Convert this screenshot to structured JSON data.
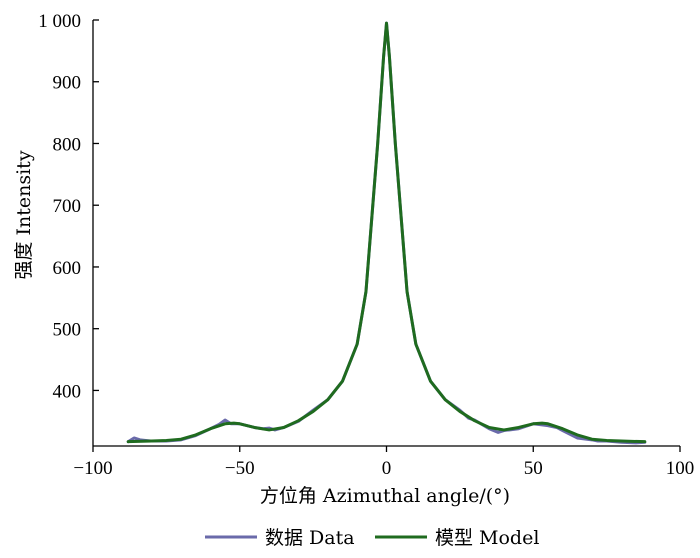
{
  "chart_data": {
    "type": "line",
    "title": "",
    "xlabel": "方位角 Azimuthal angle/(°)",
    "ylabel": "强度 Intensity",
    "xlim": [
      -100,
      100
    ],
    "ylim": [
      310,
      1000
    ],
    "x_ticks": [
      -100,
      -50,
      0,
      50,
      100
    ],
    "x_tick_labels": [
      "−100",
      "−50",
      "0",
      "50",
      "100"
    ],
    "y_ticks": [
      400,
      500,
      600,
      700,
      800,
      900,
      1000
    ],
    "y_tick_labels": [
      "400",
      "500",
      "600",
      "700",
      "800",
      "900",
      "1 000"
    ],
    "grid": false,
    "legend_position": "bottom",
    "series": [
      {
        "name": "数据 Data",
        "color": "#6a6aaa",
        "x": [
          -88,
          -86,
          -84,
          -80,
          -75,
          -70,
          -65,
          -60,
          -57,
          -55,
          -53,
          -50,
          -45,
          -42,
          -40,
          -38,
          -35,
          -30,
          -25,
          -20,
          -15,
          -10,
          -7,
          -5,
          -3,
          -1,
          0,
          1,
          3,
          5,
          7,
          10,
          15,
          20,
          25,
          28,
          30,
          35,
          38,
          40,
          45,
          50,
          55,
          58,
          60,
          65,
          70,
          72,
          75,
          80,
          85,
          88
        ],
        "y": [
          317,
          323,
          320,
          318,
          318,
          320,
          327,
          338,
          345,
          352,
          346,
          346,
          340,
          338,
          339,
          336,
          340,
          350,
          368,
          385,
          415,
          475,
          560,
          680,
          800,
          940,
          995,
          940,
          800,
          680,
          560,
          475,
          415,
          385,
          368,
          355,
          352,
          338,
          332,
          335,
          338,
          346,
          343,
          340,
          335,
          323,
          320,
          318,
          318,
          316,
          315,
          316
        ]
      },
      {
        "name": "模型 Model",
        "color": "#1f6b1f",
        "x": [
          -88,
          -80,
          -75,
          -70,
          -65,
          -60,
          -55,
          -52,
          -50,
          -45,
          -40,
          -35,
          -30,
          -25,
          -20,
          -15,
          -10,
          -7,
          -5,
          -3,
          -1,
          0,
          1,
          3,
          5,
          7,
          10,
          15,
          20,
          25,
          30,
          35,
          40,
          45,
          50,
          53,
          55,
          60,
          65,
          70,
          75,
          80,
          88
        ],
        "y": [
          317,
          318,
          319,
          321,
          328,
          338,
          346,
          347,
          346,
          340,
          336,
          340,
          351,
          366,
          385,
          415,
          475,
          560,
          680,
          800,
          940,
          995,
          940,
          800,
          680,
          560,
          475,
          415,
          385,
          366,
          351,
          340,
          336,
          340,
          346,
          347,
          346,
          338,
          328,
          321,
          319,
          318,
          317
        ]
      }
    ]
  }
}
